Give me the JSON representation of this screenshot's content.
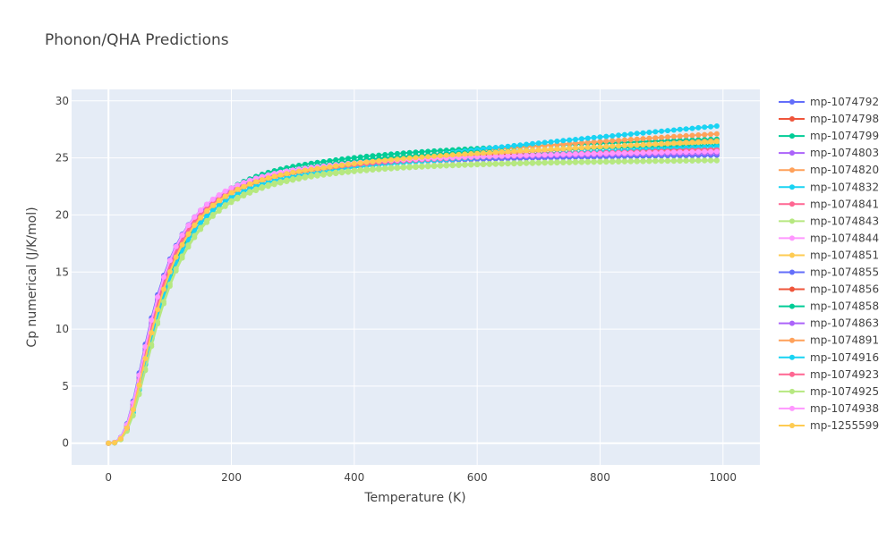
{
  "chart_data": {
    "type": "line",
    "title": "Phonon/QHA Predictions",
    "xlabel": "Temperature (K)",
    "ylabel": "Cp numerical (J/K/mol)",
    "xlim": [
      -60,
      1060
    ],
    "ylim": [
      -1.9,
      31
    ],
    "xticks": [
      0,
      200,
      400,
      600,
      800,
      1000
    ],
    "yticks": [
      0,
      5,
      10,
      15,
      20,
      25,
      30
    ],
    "grid": true,
    "legend_position": "right",
    "x": {
      "start": 0,
      "step": 10,
      "count": 100
    },
    "series": [
      {
        "name": "mp-1074792",
        "color": "#636efa",
        "shift": -1,
        "Cinf": 25.2,
        "slope": 0.0006
      },
      {
        "name": "mp-1074798",
        "color": "#EF553B",
        "shift": 2,
        "Cinf": 25.4,
        "slope": 0.0008
      },
      {
        "name": "mp-1074799",
        "color": "#00cc96",
        "shift": 3,
        "Cinf": 25.9,
        "slope": 0.0014
      },
      {
        "name": "mp-1074803",
        "color": "#ab63fa",
        "shift": -1.5,
        "Cinf": 25.3,
        "slope": 0.0005
      },
      {
        "name": "mp-1074820",
        "color": "#FFA15A",
        "shift": 0,
        "Cinf": 25.2,
        "slope": 0.0032
      },
      {
        "name": "mp-1074832",
        "color": "#19d3f3",
        "shift": 4,
        "Cinf": 25.0,
        "slope": 0.0046
      },
      {
        "name": "mp-1074841",
        "color": "#FF6692",
        "shift": 0.5,
        "Cinf": 25.2,
        "slope": 0.0007
      },
      {
        "name": "mp-1074843",
        "color": "#B6E880",
        "shift": 6,
        "Cinf": 24.8,
        "slope": 0.0002
      },
      {
        "name": "mp-1074844",
        "color": "#FF97FF",
        "shift": -2.5,
        "Cinf": 25.2,
        "slope": 0.0007
      },
      {
        "name": "mp-1074851",
        "color": "#FECB52",
        "shift": 1,
        "Cinf": 25.2,
        "slope": 0.002
      },
      {
        "name": "mp-1074855",
        "color": "#636efa",
        "shift": -3,
        "Cinf": 25.1,
        "slope": 0.0004
      },
      {
        "name": "mp-1074856",
        "color": "#EF553B",
        "shift": 2.5,
        "Cinf": 25.3,
        "slope": 0.0008
      },
      {
        "name": "mp-1074858",
        "color": "#00cc96",
        "shift": 4.5,
        "Cinf": 25.7,
        "slope": 0.0009
      },
      {
        "name": "mp-1074863",
        "color": "#ab63fa",
        "shift": -1,
        "Cinf": 25.3,
        "slope": 0.0004
      },
      {
        "name": "mp-1074891",
        "color": "#FFA15A",
        "shift": 1.5,
        "Cinf": 25.1,
        "slope": 0.0024
      },
      {
        "name": "mp-1074916",
        "color": "#19d3f3",
        "shift": 3.5,
        "Cinf": 25.0,
        "slope": 0.0018
      },
      {
        "name": "mp-1074923",
        "color": "#FF6692",
        "shift": 0,
        "Cinf": 25.2,
        "slope": 0.001
      },
      {
        "name": "mp-1074925",
        "color": "#B6E880",
        "shift": 5.5,
        "Cinf": 24.9,
        "slope": 0.0001
      },
      {
        "name": "mp-1074938",
        "color": "#FF97FF",
        "shift": -2,
        "Cinf": 25.3,
        "slope": 0.0006
      },
      {
        "name": "mp-1255599",
        "color": "#FECB52",
        "shift": 2,
        "Cinf": 25.3,
        "slope": 0.002
      }
    ]
  }
}
